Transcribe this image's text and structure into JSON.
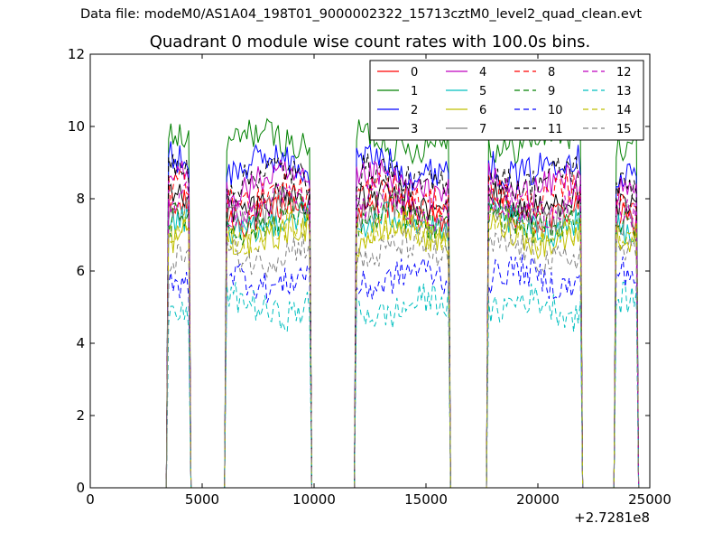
{
  "figure": {
    "suptitle": "Data file: modeM0/AS1A04_198T01_9000002322_15713cztM0_level2_quad_clean.evt"
  },
  "chart_data": {
    "type": "line",
    "title": "Quadrant 0 module wise count rates with 100.0s bins.",
    "xlabel": "",
    "ylabel": "",
    "x_offset_label": "+2.7281e8",
    "xlim": [
      0,
      25000
    ],
    "ylim": [
      0,
      12
    ],
    "x_ticks": [
      0,
      5000,
      10000,
      15000,
      20000,
      25000
    ],
    "y_ticks": [
      0,
      2,
      4,
      6,
      8,
      10,
      12
    ],
    "grid": false,
    "legend": {
      "position": "top-right",
      "columns": 4
    },
    "segments": [
      [
        3500,
        4400
      ],
      [
        6100,
        9800
      ],
      [
        11900,
        16000
      ],
      [
        17800,
        21900
      ],
      [
        23500,
        24400
      ]
    ],
    "series": [
      {
        "name": "0",
        "color": "#ff0000",
        "dash": "solid",
        "level": 7.6
      },
      {
        "name": "1",
        "color": "#008000",
        "dash": "solid",
        "level": 9.6
      },
      {
        "name": "2",
        "color": "#0000ff",
        "dash": "solid",
        "level": 8.9
      },
      {
        "name": "3",
        "color": "#000000",
        "dash": "solid",
        "level": 7.9
      },
      {
        "name": "4",
        "color": "#bf00bf",
        "dash": "solid",
        "level": 8.4
      },
      {
        "name": "5",
        "color": "#00bfbf",
        "dash": "solid",
        "level": 7.3
      },
      {
        "name": "6",
        "color": "#bfbf00",
        "dash": "solid",
        "level": 7.0
      },
      {
        "name": "7",
        "color": "#808080",
        "dash": "solid",
        "level": 7.6
      },
      {
        "name": "8",
        "color": "#ff0000",
        "dash": "dashed",
        "level": 8.1
      },
      {
        "name": "9",
        "color": "#008000",
        "dash": "dashed",
        "level": 7.4
      },
      {
        "name": "10",
        "color": "#0000ff",
        "dash": "dashed",
        "level": 5.8
      },
      {
        "name": "11",
        "color": "#000000",
        "dash": "dashed",
        "level": 8.6
      },
      {
        "name": "12",
        "color": "#bf00bf",
        "dash": "dashed",
        "level": 7.8
      },
      {
        "name": "13",
        "color": "#00bfbf",
        "dash": "dashed",
        "level": 5.0
      },
      {
        "name": "14",
        "color": "#bfbf00",
        "dash": "dashed",
        "level": 7.1
      },
      {
        "name": "15",
        "color": "#808080",
        "dash": "dashed",
        "level": 6.5
      }
    ]
  }
}
